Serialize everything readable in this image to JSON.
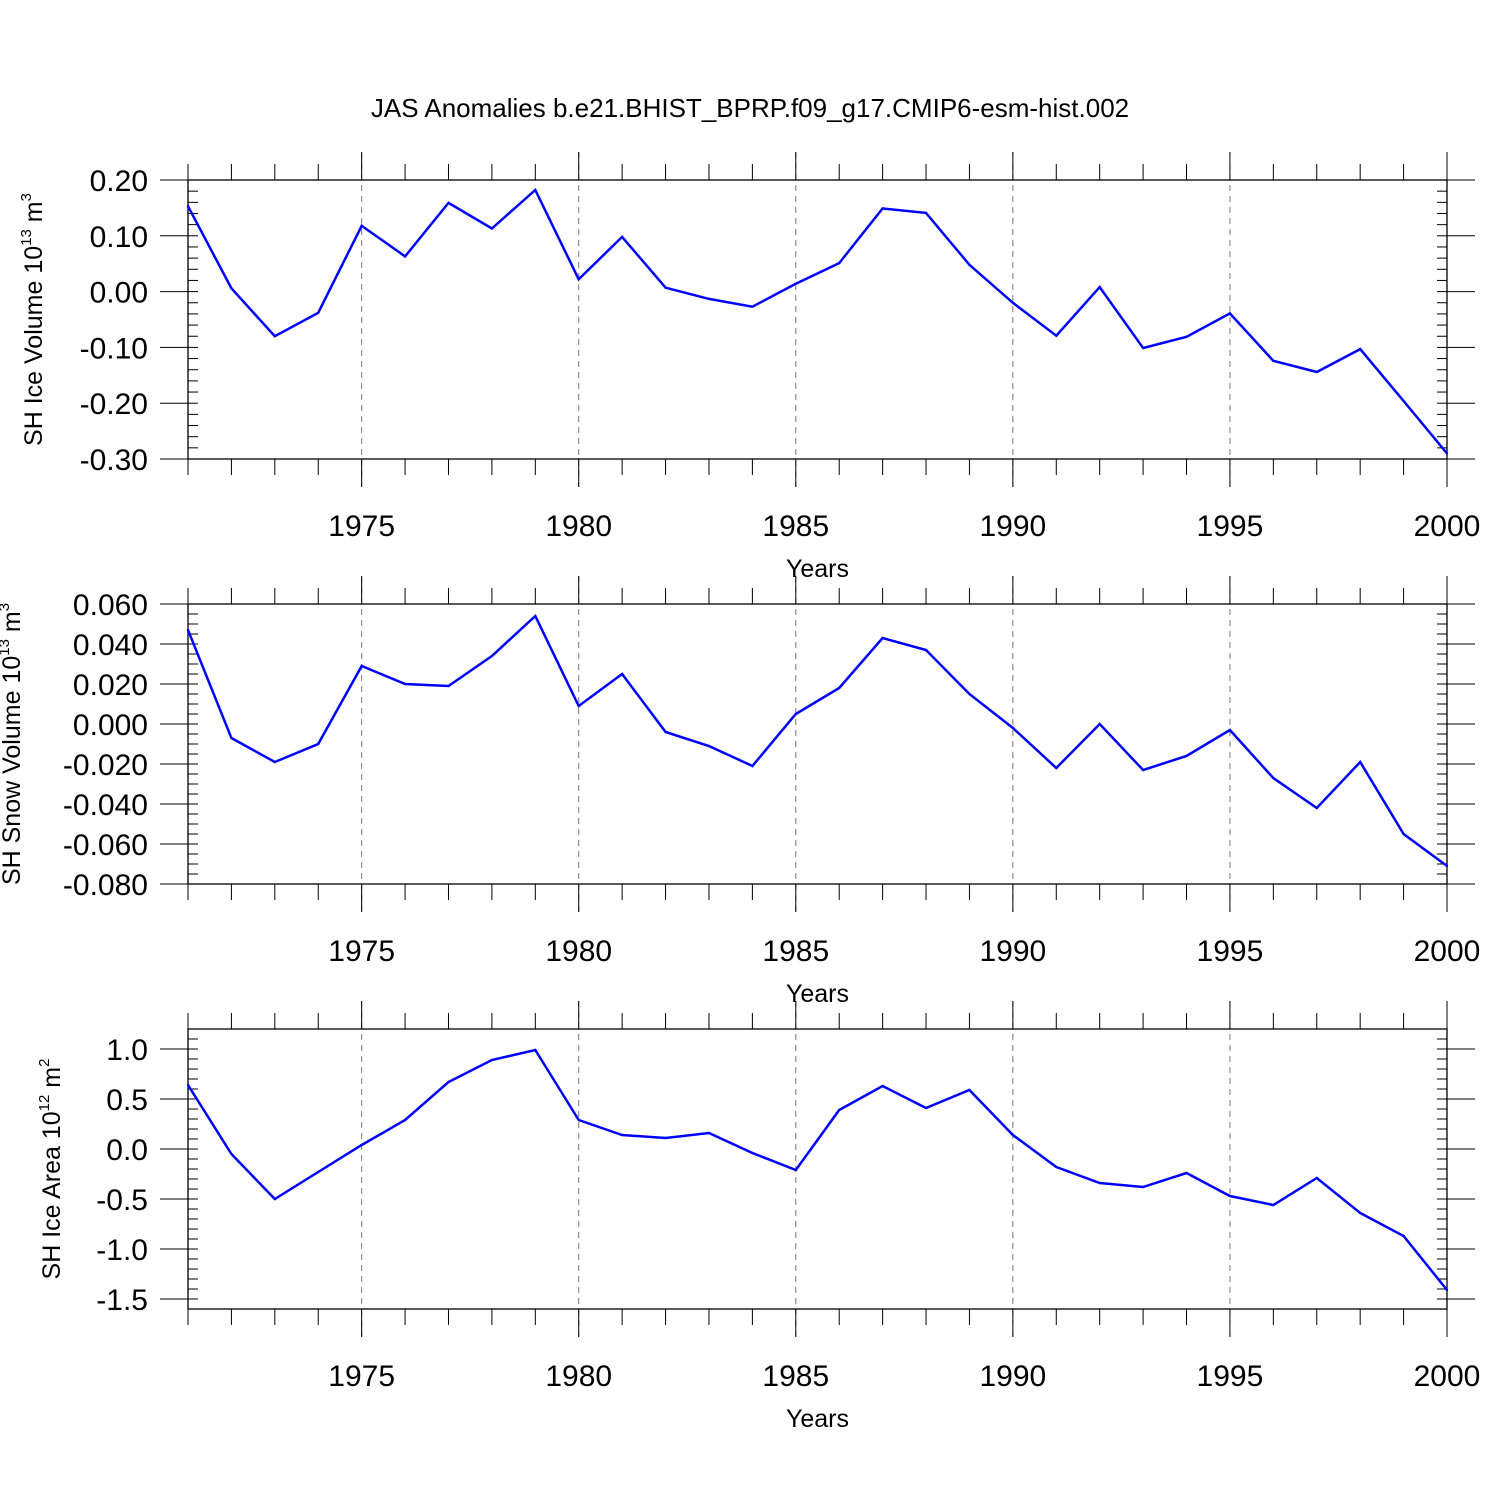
{
  "title": "JAS Anomalies b.e21.BHIST_BPRP.f09_g17.CMIP6-esm-hist.002",
  "line_color": "#0000ff",
  "chart_data": [
    {
      "type": "line",
      "title": "JAS Anomalies b.e21.BHIST_BPRP.f09_g17.CMIP6-esm-hist.002",
      "ylabel": {
        "base": "SH Ice Volume 10",
        "exp": "13",
        "unit": " m",
        "unit_exp": "3"
      },
      "xlabel": "Years",
      "xlim": [
        1971,
        2000
      ],
      "ylim": [
        -0.3,
        0.2
      ],
      "yticks": [
        -0.3,
        -0.2,
        -0.1,
        0.0,
        0.1,
        0.2
      ],
      "ytick_labels": [
        "-0.30",
        "-0.20",
        "-0.10",
        "0.00",
        "0.10",
        "0.20"
      ],
      "yminor_step": 0.02,
      "xticks": [
        1975,
        1980,
        1985,
        1990,
        1995,
        2000
      ],
      "xtick_labels": [
        "1975",
        "1980",
        "1985",
        "1990",
        "1995",
        "2000"
      ],
      "vgrid_at": [
        1975,
        1980,
        1985,
        1990,
        1995
      ],
      "x": [
        1971,
        1972,
        1973,
        1974,
        1975,
        1976,
        1977,
        1978,
        1979,
        1980,
        1981,
        1982,
        1983,
        1984,
        1985,
        1986,
        1987,
        1988,
        1989,
        1990,
        1991,
        1992,
        1993,
        1994,
        1995,
        1996,
        1997,
        1998,
        1999,
        2000
      ],
      "series": [
        {
          "name": "SH Ice Volume",
          "values": [
            0.153,
            0.006,
            -0.08,
            -0.038,
            0.118,
            0.063,
            0.159,
            0.113,
            0.182,
            0.022,
            0.098,
            0.007,
            -0.013,
            -0.027,
            0.014,
            0.051,
            0.149,
            0.141,
            0.048,
            -0.02,
            -0.079,
            0.008,
            -0.101,
            -0.081,
            -0.039,
            -0.124,
            -0.144,
            -0.103,
            -0.196,
            -0.29
          ]
        }
      ]
    },
    {
      "type": "line",
      "ylabel": {
        "base": "SH Snow Volume 10",
        "exp": "13",
        "unit": " m",
        "unit_exp": "3"
      },
      "xlabel": "Years",
      "xlim": [
        1971,
        2000
      ],
      "ylim": [
        -0.08,
        0.06
      ],
      "yticks": [
        -0.08,
        -0.06,
        -0.04,
        -0.02,
        0.0,
        0.02,
        0.04,
        0.06
      ],
      "ytick_labels": [
        "-0.080",
        "-0.060",
        "-0.040",
        "-0.020",
        "0.000",
        "0.020",
        "0.040",
        "0.060"
      ],
      "yminor_step": 0.005,
      "xticks": [
        1975,
        1980,
        1985,
        1990,
        1995,
        2000
      ],
      "xtick_labels": [
        "1975",
        "1980",
        "1985",
        "1990",
        "1995",
        "2000"
      ],
      "vgrid_at": [
        1975,
        1980,
        1985,
        1990,
        1995
      ],
      "x": [
        1971,
        1972,
        1973,
        1974,
        1975,
        1976,
        1977,
        1978,
        1979,
        1980,
        1981,
        1982,
        1983,
        1984,
        1985,
        1986,
        1987,
        1988,
        1989,
        1990,
        1991,
        1992,
        1993,
        1994,
        1995,
        1996,
        1997,
        1998,
        1999,
        2000
      ],
      "series": [
        {
          "name": "SH Snow Volume",
          "values": [
            0.047,
            -0.007,
            -0.019,
            -0.01,
            0.029,
            0.02,
            0.019,
            0.034,
            0.054,
            0.009,
            0.025,
            -0.004,
            -0.011,
            -0.021,
            0.005,
            0.018,
            0.043,
            0.037,
            0.015,
            -0.002,
            -0.022,
            0.0,
            -0.023,
            -0.016,
            -0.003,
            -0.027,
            -0.042,
            -0.019,
            -0.055,
            -0.071
          ]
        }
      ]
    },
    {
      "type": "line",
      "ylabel": {
        "base": "SH Ice Area 10",
        "exp": "12",
        "unit": " m",
        "unit_exp": "2"
      },
      "xlabel": "Years",
      "xlim": [
        1971,
        2000
      ],
      "ylim": [
        -1.6,
        1.2
      ],
      "yticks": [
        -1.5,
        -1.0,
        -0.5,
        0.0,
        0.5,
        1.0
      ],
      "ytick_labels": [
        "-1.5",
        "-1.0",
        "-0.5",
        "0.0",
        "0.5",
        "1.0"
      ],
      "yminor_step": 0.1,
      "xticks": [
        1975,
        1980,
        1985,
        1990,
        1995,
        2000
      ],
      "xtick_labels": [
        "1975",
        "1980",
        "1985",
        "1990",
        "1995",
        "2000"
      ],
      "vgrid_at": [
        1975,
        1980,
        1985,
        1990,
        1995
      ],
      "x": [
        1971,
        1972,
        1973,
        1974,
        1975,
        1976,
        1977,
        1978,
        1979,
        1980,
        1981,
        1982,
        1983,
        1984,
        1985,
        1986,
        1987,
        1988,
        1989,
        1990,
        1991,
        1992,
        1993,
        1994,
        1995,
        1996,
        1997,
        1998,
        1999,
        2000
      ],
      "series": [
        {
          "name": "SH Ice Area",
          "values": [
            0.64,
            -0.05,
            -0.5,
            -0.23,
            0.04,
            0.29,
            0.67,
            0.89,
            0.99,
            0.29,
            0.14,
            0.11,
            0.16,
            -0.04,
            -0.21,
            0.39,
            0.63,
            0.41,
            0.59,
            0.14,
            -0.18,
            -0.34,
            -0.38,
            -0.24,
            -0.47,
            -0.56,
            -0.29,
            -0.64,
            -0.87,
            -1.41
          ]
        }
      ]
    }
  ]
}
